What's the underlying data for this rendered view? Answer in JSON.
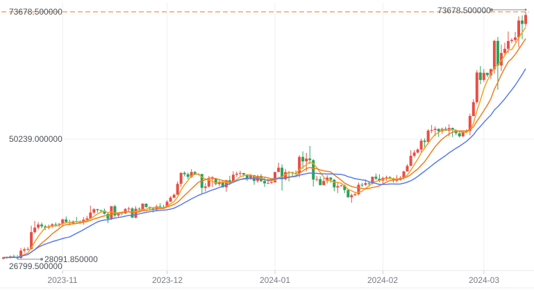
{
  "chart_data": {
    "type": "candlestick",
    "title": "",
    "legend_position": "none",
    "grid": "partial",
    "y_axis": {
      "min": 26799.5,
      "max": 73678.5,
      "labels": [
        {
          "value": 73678.5,
          "text": "73678.500000"
        },
        {
          "value": 50239.0,
          "text": "50239.000000"
        },
        {
          "value": 26799.5,
          "text": "26799.500000"
        }
      ]
    },
    "x_axis": {
      "ticks": [
        {
          "label": "2023-11",
          "candle_index": 17
        },
        {
          "label": "2023-12",
          "candle_index": 47
        },
        {
          "label": "2024-01",
          "candle_index": 78
        },
        {
          "label": "2024-02",
          "candle_index": 109
        },
        {
          "label": "2024-03",
          "candle_index": 138
        }
      ]
    },
    "annotations": {
      "max": {
        "text": "73678.500000",
        "value": 73678.5
      },
      "min": {
        "text": "28091.850000",
        "value": 28091.85
      }
    },
    "moving_averages": [
      {
        "period": 5,
        "color": "#f1a11b"
      },
      {
        "period": 10,
        "color": "#ee7c1e"
      },
      {
        "period": 20,
        "color": "#567af0"
      }
    ],
    "colors": {
      "bull": "#e84e45",
      "bear": "#29a35c",
      "max_dashed_line": "#f8ba8b",
      "grid": "#efefef",
      "axis_border": "#e9e9e9",
      "tick": "#cccccc",
      "pointer": "#85898e",
      "y_label_text": "#4c5056",
      "x_label_text": "#787c82",
      "footer_line": "#eeeeee"
    },
    "candles": [
      [
        28200,
        28520,
        28100,
        28450
      ],
      [
        28450,
        28620,
        28220,
        28320
      ],
      [
        28320,
        28780,
        28260,
        28620
      ],
      [
        28620,
        28930,
        28310,
        28410
      ],
      [
        28410,
        28880,
        28091.85,
        28330
      ],
      [
        28330,
        30180,
        28200,
        29680
      ],
      [
        29680,
        30270,
        29280,
        29920
      ],
      [
        29920,
        30350,
        29680,
        29990
      ],
      [
        29990,
        34250,
        29850,
        33090
      ],
      [
        33090,
        35150,
        32850,
        33920
      ],
      [
        33920,
        34950,
        33550,
        34500
      ],
      [
        34500,
        34850,
        33800,
        34160
      ],
      [
        34160,
        34450,
        33450,
        33910
      ],
      [
        33910,
        34480,
        33620,
        34090
      ],
      [
        34090,
        34740,
        33860,
        34530
      ],
      [
        34530,
        34900,
        34050,
        34490
      ],
      [
        34490,
        34720,
        34020,
        34650
      ],
      [
        34650,
        35590,
        34100,
        35430
      ],
      [
        35430,
        35980,
        34720,
        34940
      ],
      [
        34940,
        35380,
        34330,
        34730
      ],
      [
        34730,
        35280,
        34550,
        35070
      ],
      [
        35070,
        35890,
        34770,
        35050
      ],
      [
        35050,
        35250,
        34560,
        35020
      ],
      [
        35020,
        35880,
        34440,
        35390
      ],
      [
        35390,
        36100,
        35100,
        35630
      ],
      [
        35630,
        37970,
        35540,
        36700
      ],
      [
        36700,
        37520,
        36330,
        37310
      ],
      [
        37310,
        37410,
        36670,
        37130
      ],
      [
        37130,
        37220,
        36820,
        37070
      ],
      [
        37070,
        37430,
        36330,
        36460
      ],
      [
        36460,
        36750,
        34750,
        35550
      ],
      [
        35550,
        37900,
        35330,
        37860
      ],
      [
        37860,
        38120,
        35830,
        36160
      ],
      [
        36160,
        36700,
        35860,
        36620
      ],
      [
        36620,
        36850,
        36180,
        36570
      ],
      [
        36570,
        37500,
        36400,
        37360
      ],
      [
        37360,
        37750,
        36730,
        37450
      ],
      [
        37450,
        37650,
        35740,
        35750
      ],
      [
        35750,
        37860,
        35630,
        37410
      ],
      [
        37410,
        37650,
        36870,
        37290
      ],
      [
        37290,
        38410,
        37250,
        38330
      ],
      [
        38330,
        38400,
        37590,
        37710
      ],
      [
        37710,
        37810,
        37150,
        37450
      ],
      [
        37450,
        37600,
        36710,
        37240
      ],
      [
        37240,
        38140,
        36900,
        37850
      ],
      [
        37850,
        38420,
        37570,
        37720
      ],
      [
        37720,
        38140,
        37530,
        37710
      ],
      [
        37710,
        38970,
        37620,
        38690
      ],
      [
        38690,
        39720,
        38650,
        39450
      ],
      [
        39450,
        40220,
        39270,
        39970
      ],
      [
        39970,
        42420,
        39960,
        41990
      ],
      [
        41990,
        44100,
        41420,
        44010
      ],
      [
        44010,
        44290,
        43360,
        43760
      ],
      [
        43760,
        44050,
        42880,
        43270
      ],
      [
        43270,
        44700,
        43080,
        44170
      ],
      [
        44170,
        44350,
        43560,
        43720
      ],
      [
        43720,
        43950,
        43590,
        43790
      ],
      [
        43790,
        43810,
        40220,
        41240
      ],
      [
        41240,
        42110,
        40550,
        41490
      ],
      [
        41490,
        43440,
        41320,
        42890
      ],
      [
        42890,
        43420,
        41410,
        43020
      ],
      [
        43020,
        43080,
        41710,
        41940
      ],
      [
        41940,
        42680,
        41570,
        42280
      ],
      [
        42280,
        42720,
        41250,
        41360
      ],
      [
        41360,
        42760,
        40530,
        42660
      ],
      [
        42660,
        43460,
        41810,
        42260
      ],
      [
        42260,
        44280,
        42230,
        43670
      ],
      [
        43670,
        44240,
        43290,
        43860
      ],
      [
        43860,
        44400,
        43410,
        43980
      ],
      [
        43980,
        44000,
        43290,
        43710
      ],
      [
        43710,
        43810,
        42500,
        43010
      ],
      [
        43010,
        43800,
        42730,
        43580
      ],
      [
        43580,
        43600,
        41810,
        42520
      ],
      [
        42520,
        43680,
        42160,
        43440
      ],
      [
        43440,
        43790,
        42290,
        42510
      ],
      [
        42510,
        43110,
        41430,
        42070
      ],
      [
        42070,
        42900,
        41960,
        42150
      ],
      [
        42150,
        42860,
        41960,
        42280
      ],
      [
        42280,
        44180,
        42190,
        44170
      ],
      [
        44170,
        45880,
        44150,
        44960
      ],
      [
        44960,
        45580,
        40750,
        42840
      ],
      [
        42840,
        44730,
        42620,
        44160
      ],
      [
        44160,
        44360,
        42450,
        44150
      ],
      [
        44150,
        44210,
        43350,
        43970
      ],
      [
        43970,
        44480,
        43600,
        43940
      ],
      [
        43940,
        47250,
        43180,
        46950
      ],
      [
        46950,
        47970,
        44750,
        46120
      ],
      [
        46120,
        47700,
        44300,
        46650
      ],
      [
        46650,
        48970,
        45610,
        46350
      ],
      [
        46350,
        46520,
        41500,
        42780
      ],
      [
        42780,
        43440,
        42440,
        42850
      ],
      [
        42850,
        43370,
        41720,
        41730
      ],
      [
        41730,
        43050,
        41720,
        42510
      ],
      [
        42510,
        43580,
        42050,
        43140
      ],
      [
        43140,
        43200,
        42190,
        42740
      ],
      [
        42740,
        42880,
        40620,
        41330
      ],
      [
        41330,
        42170,
        40280,
        41580
      ],
      [
        41580,
        41850,
        41460,
        41700
      ],
      [
        41700,
        41880,
        40270,
        40840
      ],
      [
        40840,
        41080,
        39450,
        39510
      ],
      [
        39510,
        40180,
        38500,
        39900
      ],
      [
        39900,
        40500,
        39770,
        40080
      ],
      [
        40080,
        42250,
        39880,
        41820
      ],
      [
        41820,
        42200,
        41400,
        41810
      ],
      [
        41810,
        42800,
        41590,
        42120
      ],
      [
        42120,
        42310,
        41620,
        42030
      ],
      [
        42030,
        43310,
        41880,
        43300
      ],
      [
        43300,
        43870,
        42680,
        42940
      ],
      [
        42940,
        43750,
        42280,
        42580
      ],
      [
        42580,
        43300,
        41880,
        43080
      ],
      [
        43080,
        43490,
        42560,
        43190
      ],
      [
        43190,
        43420,
        42880,
        43010
      ],
      [
        43010,
        43130,
        42220,
        42580
      ],
      [
        42580,
        43580,
        42260,
        42700
      ],
      [
        42700,
        43400,
        42570,
        43090
      ],
      [
        43090,
        44380,
        42780,
        44280
      ],
      [
        44280,
        45610,
        44250,
        45300
      ],
      [
        45300,
        48170,
        45240,
        47150
      ],
      [
        47150,
        48200,
        46850,
        47750
      ],
      [
        47750,
        48550,
        47570,
        48300
      ],
      [
        48300,
        50330,
        47710,
        49940
      ],
      [
        49940,
        50370,
        48380,
        49700
      ],
      [
        49700,
        52080,
        49280,
        51800
      ],
      [
        51800,
        52820,
        51340,
        51900
      ],
      [
        51900,
        52580,
        50770,
        52120
      ],
      [
        52120,
        52190,
        50640,
        51660
      ],
      [
        51660,
        52350,
        51170,
        52120
      ],
      [
        52120,
        52490,
        51730,
        51780
      ],
      [
        51780,
        52970,
        50760,
        52270
      ],
      [
        52270,
        52370,
        50630,
        51850
      ],
      [
        51850,
        52030,
        50920,
        51310
      ],
      [
        51310,
        51550,
        50520,
        50740
      ],
      [
        50740,
        51690,
        50580,
        51570
      ],
      [
        51570,
        52050,
        51290,
        51730
      ],
      [
        51730,
        54910,
        50930,
        54480
      ],
      [
        54480,
        57580,
        54450,
        57040
      ],
      [
        57040,
        62950,
        56690,
        62500
      ],
      [
        62500,
        63680,
        60360,
        61130
      ],
      [
        61130,
        63150,
        60780,
        62440
      ],
      [
        62440,
        62470,
        61640,
        61990
      ],
      [
        61990,
        63230,
        61320,
        63120
      ],
      [
        63120,
        68530,
        62300,
        68330
      ],
      [
        68330,
        69050,
        59320,
        63800
      ],
      [
        63800,
        67640,
        62780,
        66100
      ],
      [
        66100,
        67980,
        65590,
        66870
      ],
      [
        66870,
        70050,
        66070,
        68300
      ],
      [
        68300,
        68800,
        67900,
        68500
      ],
      [
        68500,
        69980,
        68100,
        68950
      ],
      [
        68950,
        72850,
        67130,
        72080
      ],
      [
        72080,
        73000,
        68620,
        71450
      ],
      [
        71450,
        73678.5,
        70950,
        73100
      ]
    ]
  }
}
